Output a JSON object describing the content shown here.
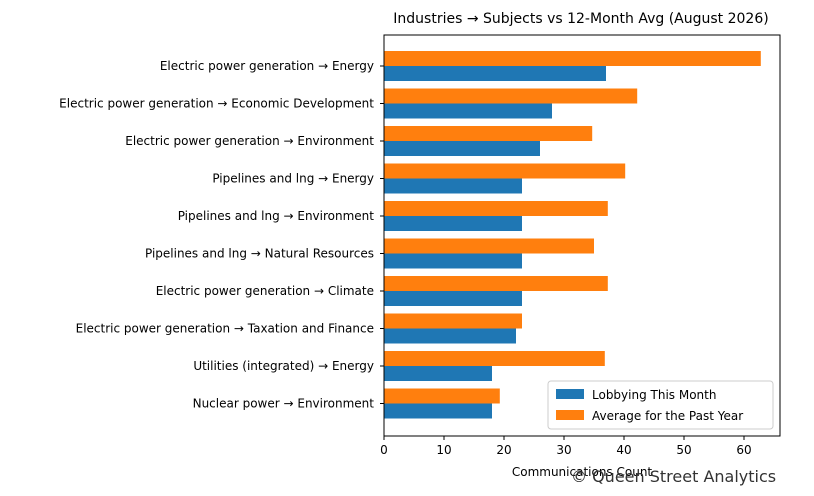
{
  "chart_data": {
    "type": "bar",
    "orientation": "horizontal",
    "title": "Industries → Subjects vs 12-Month Avg (August 2026)",
    "xlabel": "Communications Count",
    "ylabel": "",
    "xlim": [
      0,
      66
    ],
    "xticks": [
      "0",
      "10",
      "20",
      "30",
      "40",
      "50",
      "60"
    ],
    "categories": [
      "Electric power generation → Energy",
      "Electric power generation → Economic Development",
      "Electric power generation → Environment",
      "Pipelines and lng → Energy",
      "Pipelines and lng → Environment",
      "Pipelines and lng → Natural Resources",
      "Electric power generation → Climate",
      "Electric power generation → Taxation and Finance",
      "Utilities (integrated) → Energy",
      "Nuclear power → Environment"
    ],
    "series": [
      {
        "name": "Lobbying This Month",
        "color": "#1f77b4",
        "values": [
          37,
          28,
          26,
          23,
          23,
          23,
          23,
          22,
          18,
          18
        ]
      },
      {
        "name": "Average for the Past Year",
        "color": "#ff7f0e",
        "values": [
          62.8,
          42.2,
          34.7,
          40.2,
          37.3,
          35,
          37.3,
          23,
          36.8,
          19.3
        ]
      }
    ],
    "legend_position": "lower-right",
    "grid": false
  },
  "watermark": "© Queen Street Analytics"
}
